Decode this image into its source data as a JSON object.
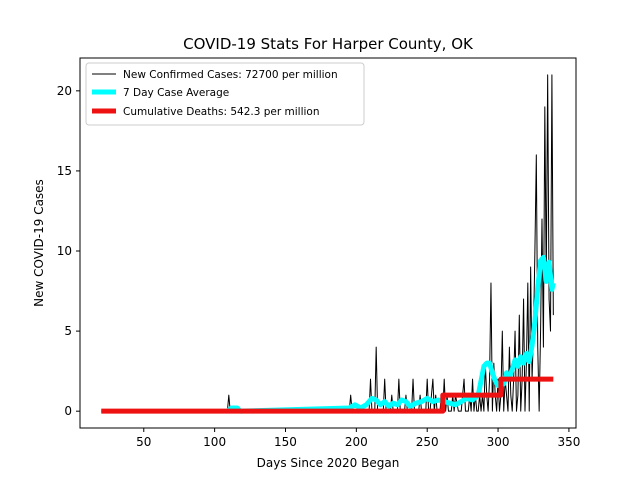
{
  "chart_data": {
    "type": "line",
    "title": "COVID-19 Stats For Harper County, OK",
    "xlabel": "Days Since 2020 Began",
    "ylabel": "New COVID-19 Cases",
    "xlim": [
      5,
      355
    ],
    "ylim": [
      -1.05,
      22.05
    ],
    "xticks": [
      50,
      100,
      150,
      200,
      250,
      300,
      350
    ],
    "yticks": [
      0,
      5,
      10,
      15,
      20
    ],
    "grid": false,
    "legend_position": "upper-left",
    "series": [
      {
        "name": "New Confirmed Cases: 72700 per million",
        "color": "#000000",
        "style": "thin",
        "x": [
          20,
          109,
          110,
          111,
          112,
          195,
          196,
          197,
          209,
          210,
          211,
          213,
          214,
          215,
          216,
          219,
          220,
          221,
          224,
          225,
          226,
          229,
          230,
          231,
          234,
          235,
          236,
          239,
          240,
          241,
          244,
          245,
          246,
          249,
          250,
          251,
          252,
          253,
          254,
          255,
          256,
          257,
          259,
          260,
          261,
          262,
          263,
          264,
          265,
          266,
          267,
          268,
          269,
          270,
          272,
          273,
          274,
          275,
          276,
          277,
          278,
          279,
          280,
          281,
          282,
          283,
          284,
          285,
          286,
          287,
          288,
          289,
          290,
          291,
          292,
          293,
          294,
          295,
          296,
          297,
          298,
          299,
          300,
          301,
          302,
          303,
          304,
          305,
          306,
          307,
          308,
          309,
          310,
          311,
          312,
          313,
          314,
          315,
          316,
          317,
          318,
          319,
          320,
          321,
          322,
          323,
          324,
          325,
          326,
          327,
          328,
          329,
          330,
          331,
          332,
          333,
          334,
          335,
          336,
          337,
          338,
          339
        ],
        "y": [
          0,
          0,
          1,
          0,
          0,
          0,
          1,
          0,
          0,
          2,
          0,
          0,
          4,
          0,
          0,
          0,
          2,
          0,
          0,
          1,
          0,
          0,
          2,
          0,
          0,
          1,
          0,
          0,
          2,
          0,
          0,
          1,
          0,
          0,
          2,
          0,
          0,
          1,
          2,
          0,
          1,
          0,
          0,
          1,
          0,
          2,
          0,
          1,
          0,
          0,
          0,
          1,
          0,
          1,
          0,
          0,
          0,
          1,
          2,
          0,
          0,
          0,
          1,
          0,
          2,
          0,
          1,
          0,
          0,
          1,
          0,
          1,
          0,
          3,
          1,
          0,
          2,
          8,
          0,
          3,
          1,
          0,
          2,
          0,
          1,
          5,
          0,
          2,
          1,
          0,
          4,
          1,
          0,
          2,
          5,
          0,
          1,
          6,
          0,
          2,
          7,
          0,
          3,
          8,
          0,
          9,
          2,
          5,
          10,
          16,
          4,
          0,
          5,
          12,
          4,
          19,
          8,
          21,
          7,
          5,
          21,
          6
        ]
      },
      {
        "name": "7 Day Case Average",
        "color": "#00ffff",
        "style": "thick",
        "x": [
          109,
          112,
          114,
          116,
          118,
          195,
          199,
          203,
          207,
          211,
          214,
          217,
          220,
          223,
          226,
          229,
          232,
          235,
          238,
          242,
          246,
          250,
          254,
          258,
          262,
          266,
          270,
          274,
          278,
          282,
          286,
          290,
          292,
          294,
          296,
          298,
          300,
          302,
          304,
          306,
          308,
          310,
          312,
          314,
          316,
          318,
          320,
          322,
          324,
          326,
          328,
          330,
          332,
          334,
          336,
          338,
          339
        ],
        "y": [
          0,
          0.2,
          0.2,
          0.2,
          0,
          0.2,
          0.4,
          0.2,
          0.4,
          0.8,
          0.7,
          0.4,
          0.6,
          0.3,
          0.5,
          0.4,
          0.7,
          0.6,
          0.3,
          0.5,
          0.6,
          0.8,
          0.6,
          0.7,
          0.6,
          0.5,
          0.4,
          0.6,
          0.8,
          0.7,
          1.0,
          2.8,
          3.0,
          3.0,
          2.4,
          1.9,
          1.6,
          1.8,
          1.7,
          2.4,
          2.1,
          2.6,
          3.2,
          2.8,
          3.4,
          3.0,
          3.6,
          3.1,
          4.1,
          5.6,
          7.7,
          9.4,
          9.6,
          8.1,
          9.3,
          7.6,
          8.0
        ]
      },
      {
        "name": "Cumulative Deaths: 542.3 per million",
        "color": "#ee1111",
        "style": "thick",
        "step": true,
        "x": [
          20,
          261,
          261,
          302,
          302,
          339
        ],
        "y": [
          0,
          0,
          1,
          1,
          2,
          2
        ]
      }
    ]
  }
}
